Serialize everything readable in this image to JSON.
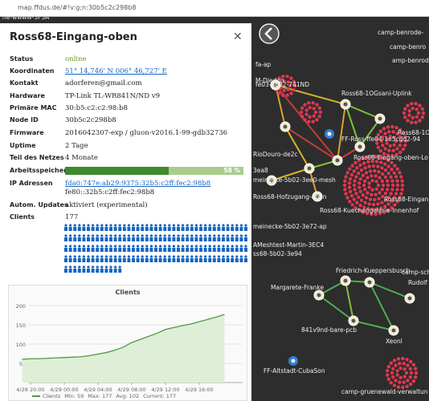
{
  "browser": {
    "url": "map.ffdus.de/#!v:g;n:30b5c2c298b8"
  },
  "panel": {
    "title": "Ross68-Eingang-oben",
    "rows": [
      {
        "label": "Status",
        "value": "online"
      },
      {
        "label": "Koordinaten",
        "value": "51° 14,746' N 006° 46,727' E"
      },
      {
        "label": "Kontakt",
        "value": "adorferen@gmail.com"
      },
      {
        "label": "Hardware",
        "value": "TP-Link TL-WR841N/ND v9"
      },
      {
        "label": "Primäre MAC",
        "value": "30:b5:c2:c2:98:b8"
      },
      {
        "label": "Node ID",
        "value": "30b5c2c298b8"
      },
      {
        "label": "Firmware",
        "value": "2016042307-exp / gluon-v2016.1-99-gdb32736"
      },
      {
        "label": "Uptime",
        "value": "2 Tage"
      },
      {
        "label": "Teil des Netzes",
        "value": "4 Monate"
      }
    ],
    "memory": {
      "label": "Arbeitsspeicher",
      "value": 58,
      "value_label": "58 %"
    },
    "ip": {
      "label": "IP Adressen",
      "values": [
        "fda0:747e:ab29:9375:32b5:c2ff:fec2:98b8",
        "fe80::32b5:c2ff:fec2:98b8"
      ]
    },
    "updates": {
      "label": "Autom. Updates",
      "value": "aktiviert (experimental)"
    },
    "clients": {
      "label": "Clients",
      "value": 177
    },
    "chart": {
      "type": "line",
      "title": "Clients",
      "x": [
        "4/28 19:00",
        "4/28 20:00",
        "4/28 21:00",
        "4/28 22:00",
        "4/28 23:00",
        "4/29 00:00",
        "4/29 01:00",
        "4/29 02:00",
        "4/29 03:00",
        "4/29 04:00",
        "4/29 05:00",
        "4/29 06:00",
        "4/29 07:00",
        "4/29 08:00",
        "4/29 09:00",
        "4/29 10:00",
        "4/29 11:00",
        "4/29 12:00",
        "4/29 13:00",
        "4/29 14:00",
        "4/29 15:00",
        "4/29 16:00",
        "4/29 17:00",
        "4/29 18:00",
        "4/29 19:00"
      ],
      "values": [
        60,
        62,
        62,
        63,
        64,
        65,
        66,
        67,
        70,
        74,
        78,
        84,
        92,
        104,
        112,
        120,
        128,
        138,
        143,
        148,
        152,
        158,
        164,
        170,
        177
      ],
      "color": "#4f9a3f",
      "ylim": [
        0,
        200
      ],
      "yticks": [
        50,
        100,
        150,
        200
      ],
      "xticks": [
        "4/28 20:00",
        "4/29 00:00",
        "4/29 04:00",
        "4/29 08:00",
        "4/29 12:00",
        "4/29 16:00"
      ],
      "legend": {
        "name": "Clients",
        "min": "Min: 59",
        "max": "Max: 177",
        "avg": "Avg: 102",
        "current": "Current: 177"
      }
    }
  },
  "map": {
    "labels": [
      "he-wwww-3F3A",
      "camp-benrode-",
      "camp-benro",
      "amp-benrod",
      "fa-ap",
      "M-Diedon",
      "fe03-5b02-741ND",
      "Ross68-1OGsani-Uplink",
      "Ross68-1O",
      "FF-Ross-ffe04-1e5cdd2-94",
      "RioDouro-de2c",
      "Ross68-Eingang-oben-Lo",
      "3ea8",
      "meinecke-5b02-3ee0-mesh",
      "Ross68-Hofzugang-oben",
      "Ross68-Eingan",
      "Ross68-Kuechengalerie-Innenhof",
      "meinecke-5b02-3e72-ap",
      "AMeshtest-Martin-3EC4",
      "ss68-5b02-3e94",
      "Friedrich-Kueppersbusch",
      "camp-schimm",
      "Margarete-Franke",
      "Rudolf",
      "841v9nd-bare-pcb",
      "Xeonl",
      "FF-Altstadt-CubaSon",
      "camp-gruenewald-verwaltun"
    ]
  }
}
